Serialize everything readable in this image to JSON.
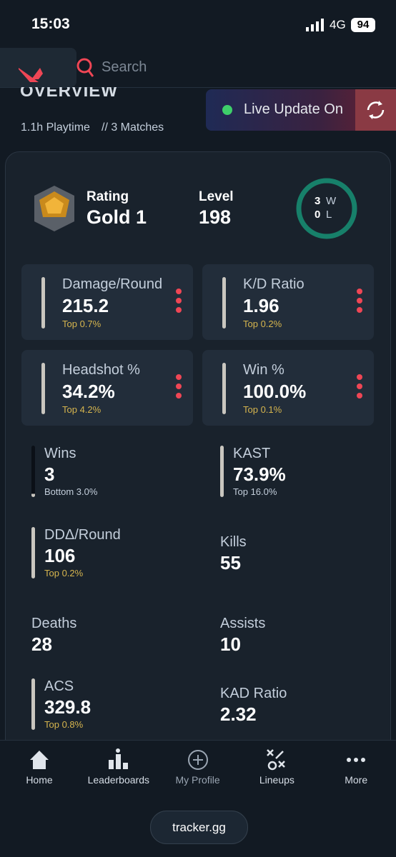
{
  "status_bar": {
    "time": "15:03",
    "network": "4G",
    "battery": "94"
  },
  "header": {
    "search_placeholder": "Search"
  },
  "overview": {
    "title": "OVERVIEW",
    "playtime": "1.1h Playtime",
    "matches": "// 3 Matches",
    "live_update": "Live Update On"
  },
  "summary": {
    "rating_label": "Rating",
    "rating": "Gold 1",
    "level_label": "Level",
    "level": "198",
    "wins": "3",
    "wins_label": "W",
    "losses": "0",
    "losses_label": "L"
  },
  "stat_cards": [
    {
      "label": "Damage/Round",
      "value": "215.2",
      "rank": "Top 0.7%"
    },
    {
      "label": "K/D Ratio",
      "value": "1.96",
      "rank": "Top 0.2%"
    },
    {
      "label": "Headshot %",
      "value": "34.2%",
      "rank": "Top 4.2%"
    },
    {
      "label": "Win %",
      "value": "100.0%",
      "rank": "Top 0.1%"
    }
  ],
  "stats": [
    {
      "label": "Wins",
      "value": "3",
      "rank": "Bottom 3.0%"
    },
    {
      "label": "KAST",
      "value": "73.9%",
      "rank": "Top 16.0%"
    },
    {
      "label": "DDΔ/Round",
      "value": "106",
      "rank": "Top 0.2%"
    },
    {
      "label": "Kills",
      "value": "55"
    },
    {
      "label": "Deaths",
      "value": "28"
    },
    {
      "label": "Assists",
      "value": "10"
    },
    {
      "label": "ACS",
      "value": "329.8",
      "rank": "Top 0.8%"
    },
    {
      "label": "KAD Ratio",
      "value": "2.32"
    }
  ],
  "nav": [
    {
      "label": "Home"
    },
    {
      "label": "Leaderboards"
    },
    {
      "label": "My Profile"
    },
    {
      "label": "Lineups"
    },
    {
      "label": "More"
    }
  ],
  "footer": {
    "url": "tracker.gg"
  }
}
